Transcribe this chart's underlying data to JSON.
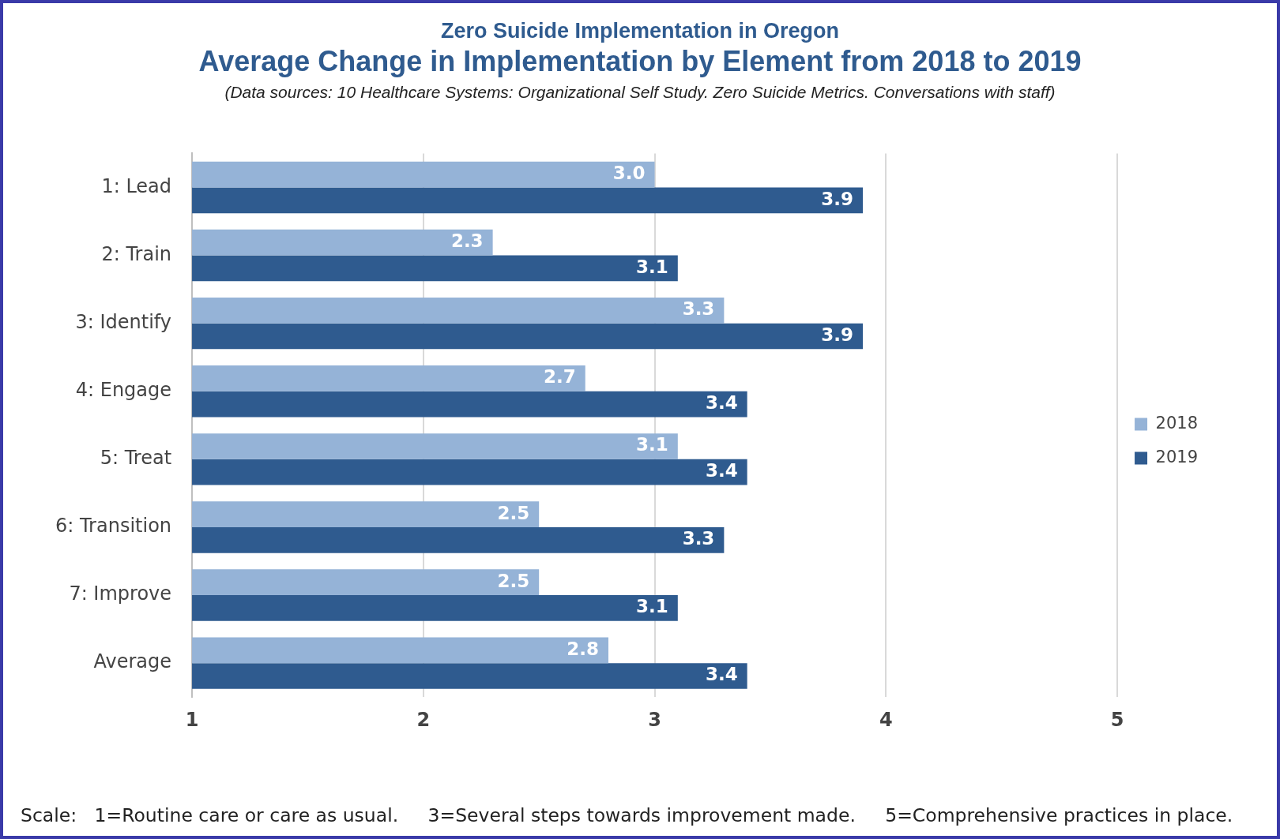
{
  "chart_data": {
    "type": "bar",
    "orientation": "horizontal",
    "subtitle": "Zero Suicide Implementation in Oregon",
    "title": "Average Change in Implementation by Element from 2018 to 2019",
    "annotations": [
      "(Data sources: 10 Healthcare Systems: Organizational Self Study. Zero Suicide Metrics. Conversations with staff)",
      "Scale:   1=Routine care or care as usual.     3=Several steps towards improvement made.     5=Comprehensive practices in place."
    ],
    "categories": [
      "1: Lead",
      "2: Train",
      "3: Identify",
      "4: Engage",
      "5: Treat",
      "6: Transition",
      "7: Improve",
      "Average"
    ],
    "series": [
      {
        "name": "2018",
        "color": "#95b3d7",
        "values": [
          3.0,
          2.3,
          3.3,
          2.7,
          3.1,
          2.5,
          2.5,
          2.8
        ],
        "value_labels": [
          "3.0",
          "2.3",
          "3.3",
          "2.7",
          "3.1",
          "2.5",
          "2.5",
          "2.8"
        ]
      },
      {
        "name": "2019",
        "color": "#2f5b8f",
        "values": [
          3.9,
          3.1,
          3.9,
          3.4,
          3.4,
          3.3,
          3.1,
          3.4
        ],
        "value_labels": [
          "3.9",
          "3.1",
          "3.9",
          "3.4",
          "3.4",
          "3.3",
          "3.1",
          "3.4"
        ]
      }
    ],
    "xlim": [
      1,
      5
    ],
    "xticks": [
      1,
      2,
      3,
      4,
      5
    ],
    "grid": "x",
    "legend": "right"
  }
}
